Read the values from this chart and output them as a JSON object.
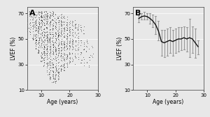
{
  "panel_A_label": "A",
  "panel_B_label": "B",
  "xlabel": "Age (years)",
  "ylabel": "LVEF (%)",
  "xlim": [
    5,
    30
  ],
  "ylim": [
    10,
    75
  ],
  "xticks": [
    10,
    20,
    30
  ],
  "yticks": [
    10,
    30,
    50,
    70
  ],
  "background_color": "#e8e8e8",
  "plot_bg_color": "#e8e8e8",
  "scatter_color": "#222222",
  "line_color": "#111111",
  "errorbar_color": "#999999",
  "grid_color": "#ffffff",
  "panel_B_ages": [
    7,
    8,
    9,
    10,
    11,
    12,
    13,
    14,
    15,
    16,
    17,
    18,
    19,
    20,
    21,
    22,
    23,
    24,
    25,
    26,
    27,
    28
  ],
  "panel_B_means": [
    66,
    67.5,
    68,
    67.5,
    66,
    64,
    61,
    56,
    48,
    47,
    48,
    49,
    48,
    49,
    50,
    50,
    51,
    50,
    51,
    50,
    47,
    44
  ],
  "panel_B_upper": [
    68.5,
    70,
    71,
    70,
    70,
    69,
    68,
    64,
    57,
    57,
    58,
    59,
    57,
    58,
    59,
    59,
    60,
    59,
    66,
    60,
    58,
    49
  ],
  "panel_B_lower": [
    63,
    65,
    65,
    65,
    62,
    59,
    54,
    49,
    37,
    36,
    37,
    39,
    37,
    39,
    40,
    41,
    42,
    40,
    36,
    39,
    35,
    38
  ],
  "seed": 42
}
